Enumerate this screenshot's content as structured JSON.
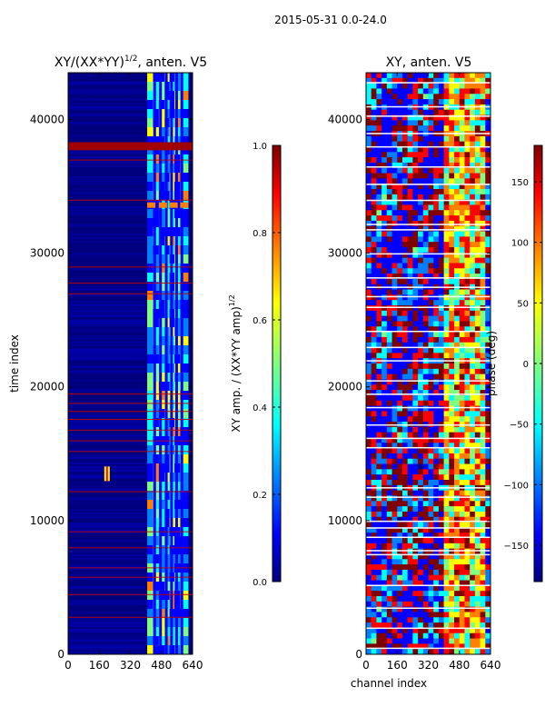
{
  "suptitle": "2015-05-31 0.0-24.0",
  "colors": {
    "background_blue": "#00007f",
    "row_flag": "#c00000",
    "flag_white": "#ffffff",
    "jet": [
      "#00007f",
      "#0000ff",
      "#007fff",
      "#00ffff",
      "#7fff7f",
      "#ffff00",
      "#ff7f00",
      "#ff0000",
      "#7f0000"
    ]
  },
  "chart_data": [
    {
      "type": "heatmap",
      "title_base": "XY/(XX*YY)",
      "title_exp": "1/2",
      "title_rest": ", anten. V5",
      "ylabel": "time index",
      "xlabel": "",
      "xlim": [
        0,
        640
      ],
      "ylim": [
        0,
        43500
      ],
      "xticks": [
        0,
        160,
        320,
        480,
        640
      ],
      "yticks": [
        0,
        10000,
        20000,
        30000,
        40000
      ],
      "colorbar": {
        "label_base": "XY amp. / (XX*YY amp)",
        "label_exp": "1/2",
        "range": [
          0.0,
          1.0
        ],
        "ticks": [
          "0.0",
          "0.2",
          "0.4",
          "0.6",
          "0.8",
          "1.0"
        ],
        "tick_values": [
          0.0,
          0.2,
          0.4,
          0.6,
          0.8,
          1.0
        ]
      },
      "flagged_rows": [
        38000,
        37000,
        34000,
        29000,
        27800,
        27000,
        19500,
        18800,
        18200,
        17600,
        16800,
        16000,
        15200,
        12200,
        9200,
        8000,
        6500,
        5800,
        4500,
        2800
      ],
      "hot_block_rows": [
        37700,
        38300
      ]
    },
    {
      "type": "heatmap",
      "title": "XY, anten. V5",
      "ylabel": "",
      "xlabel": "channel index",
      "xlim": [
        0,
        640
      ],
      "ylim": [
        0,
        43500
      ],
      "xticks": [
        0,
        160,
        320,
        480,
        640
      ],
      "yticks": [
        0,
        10000,
        20000,
        30000,
        40000
      ],
      "colorbar": {
        "label": "phase (deg)",
        "range": [
          -180,
          180
        ],
        "ticks": [
          "−150",
          "−100",
          "−50",
          "0",
          "50",
          "100",
          "150"
        ],
        "tick_values": [
          -150,
          -100,
          -50,
          0,
          50,
          100,
          150
        ]
      },
      "flagged_rows": [
        42800,
        41000,
        40300,
        39000,
        38000,
        36500,
        35200,
        34000,
        32200,
        31800,
        30000,
        28200,
        27500,
        26800,
        26000,
        24200,
        23000,
        22000,
        20500,
        19500,
        18500,
        17200,
        16200,
        15500,
        12500,
        11800,
        10000,
        9500,
        8800,
        7800,
        7500,
        5200,
        3500,
        2000,
        500
      ]
    }
  ]
}
